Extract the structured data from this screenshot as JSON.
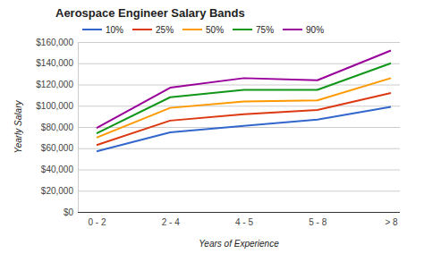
{
  "chart_data": {
    "type": "line",
    "title": "Aerospace Engineer Salary Bands",
    "x_label": "Years of Experience",
    "y_label": "Yearly Salary",
    "categories": [
      "0 - 2",
      "2 - 4",
      "4 - 5",
      "5 - 8",
      "> 8"
    ],
    "series": [
      {
        "name": "10%",
        "color": "#3366cc",
        "values": [
          57000,
          75000,
          81000,
          87000,
          99000
        ]
      },
      {
        "name": "25%",
        "color": "#dc3912",
        "values": [
          63000,
          86000,
          92000,
          96000,
          112000
        ]
      },
      {
        "name": "50%",
        "color": "#ff9900",
        "values": [
          70000,
          98000,
          104000,
          105000,
          126000
        ]
      },
      {
        "name": "75%",
        "color": "#109618",
        "values": [
          74000,
          108000,
          115000,
          115000,
          140000
        ]
      },
      {
        "name": "90%",
        "color": "#990099",
        "values": [
          79000,
          117000,
          126000,
          124000,
          152000
        ]
      }
    ],
    "ylim": [
      0,
      160000
    ],
    "yticks": [
      {
        "value": 0,
        "label": "$0"
      },
      {
        "value": 20000,
        "label": "$20,000"
      },
      {
        "value": 40000,
        "label": "$40,000"
      },
      {
        "value": 60000,
        "label": "$60,000"
      },
      {
        "value": 80000,
        "label": "$80,000"
      },
      {
        "value": 100000,
        "label": "$100,000"
      },
      {
        "value": 120000,
        "label": "$120,000"
      },
      {
        "value": 140000,
        "label": "$140,000"
      },
      {
        "value": 160000,
        "label": "$160,000"
      }
    ],
    "grid": true,
    "legend": "top"
  }
}
